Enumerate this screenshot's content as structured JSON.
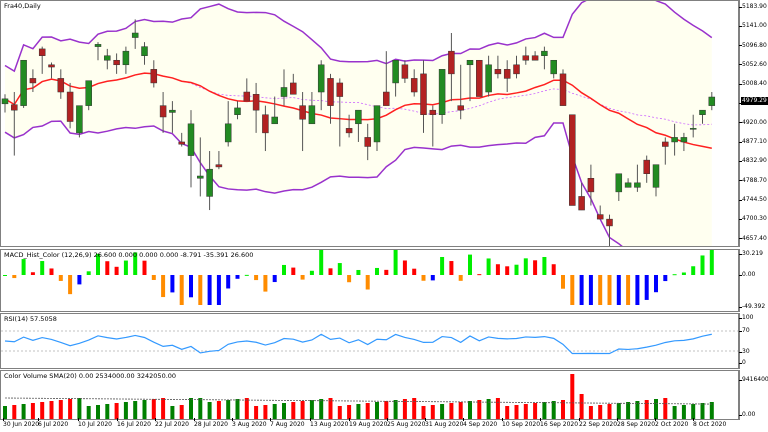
{
  "window": {
    "symbol_label": "Fra40,Daily"
  },
  "main_panel": {
    "price_axis": [
      "5183.90",
      "5141.00",
      "5096.80",
      "5052.60",
      "5008.40",
      "4964.20",
      "4920.00",
      "4877.10",
      "4832.90",
      "4788.70",
      "4744.50",
      "4700.30",
      "4657.40"
    ],
    "current_price": "4979.29",
    "colors": {
      "bull": "#228B22",
      "bear": "#B22222",
      "band": "#9932CC",
      "ma": "#FF2020",
      "fill": "#FFFFF0"
    }
  },
  "macd_panel": {
    "label": "MACD_Hist_Color (12,26,9)  26.600 0.000 0.000 0.000 -8.791 -35.391 26.600",
    "axis": [
      "30.219",
      "0.00",
      "-49.392"
    ]
  },
  "rsi_panel": {
    "label": "RSI(14) 57.5058",
    "axis": [
      "100",
      "70",
      "30",
      "0"
    ]
  },
  "volume_panel": {
    "label": "Color Volume SMA(20) 0.00 2534000.00 3242050.00",
    "axis": [
      "9416400",
      "0.00"
    ]
  },
  "x_axis": [
    "30 Jun 2020",
    "6 Jul 2020",
    "10 Jul 2020",
    "16 Jul 2020",
    "22 Jul 2020",
    "28 Jul 2020",
    "3 Aug 2020",
    "7 Aug 2020",
    "13 Aug 2020",
    "19 Aug 2020",
    "25 Aug 2020",
    "31 Aug 2020",
    "4 Sep 2020",
    "10 Sep 2020",
    "16 Sep 2020",
    "22 Sep 2020",
    "28 Sep 2020",
    "2 Oct 2020",
    "8 Oct 2020"
  ],
  "chart_data": [
    {
      "type": "candlestick",
      "title": "Fra40,Daily",
      "xlabel": "",
      "ylabel": "",
      "ylim": [
        4657.4,
        5183.9
      ],
      "overlays": [
        "Bollinger Bands (upper/lower)",
        "Moving average (red)",
        "Dotted MA (violet)"
      ],
      "candles_ohlc": [
        [
          4964,
          4985,
          4945,
          4975
        ],
        [
          4962,
          4990,
          4850,
          4950
        ],
        [
          4960,
          5010,
          4955,
          5060
        ],
        [
          5020,
          5040,
          4990,
          5010
        ],
        [
          5085,
          5090,
          5030,
          5070
        ],
        [
          5050,
          5055,
          5020,
          5045
        ],
        [
          5020,
          5040,
          4975,
          4990
        ],
        [
          4990,
          5010,
          4910,
          4925
        ],
        [
          4900,
          4930,
          4890,
          4960
        ],
        [
          4960,
          5010,
          4950,
          5015
        ],
        [
          5090,
          5100,
          5060,
          5095
        ],
        [
          5060,
          5085,
          5040,
          5070
        ],
        [
          5060,
          5075,
          5030,
          5050
        ],
        [
          5050,
          5090,
          5030,
          5080
        ],
        [
          5110,
          5150,
          5085,
          5120
        ],
        [
          5070,
          5100,
          5050,
          5090
        ],
        [
          5040,
          5060,
          5000,
          5010
        ],
        [
          4960,
          4990,
          4900,
          4935
        ],
        [
          4945,
          4970,
          4900,
          4950
        ],
        [
          4880,
          4900,
          4870,
          4875
        ],
        [
          4850,
          4950,
          4780,
          4920
        ],
        [
          4800,
          4890,
          4760,
          4805
        ],
        [
          4760,
          4860,
          4730,
          4820
        ],
        [
          4830,
          4860,
          4820,
          4825
        ],
        [
          4880,
          4970,
          4870,
          4920
        ],
        [
          4940,
          4970,
          4930,
          4955
        ],
        [
          4990,
          5020,
          4980,
          4970
        ],
        [
          4985,
          5010,
          4900,
          4950
        ],
        [
          4940,
          4960,
          4860,
          4900
        ],
        [
          4920,
          4980,
          4920,
          4935
        ],
        [
          4980,
          5040,
          4960,
          5000
        ],
        [
          5010,
          5030,
          4990,
          4985
        ],
        [
          4960,
          4990,
          4860,
          4930
        ],
        [
          4920,
          4990,
          4920,
          4960
        ],
        [
          4990,
          5060,
          4950,
          5050
        ],
        [
          5020,
          5030,
          4920,
          4960
        ],
        [
          5010,
          5020,
          4870,
          4980
        ],
        [
          4910,
          4940,
          4890,
          4900
        ],
        [
          4920,
          4940,
          4880,
          4950
        ],
        [
          4890,
          4920,
          4840,
          4870
        ],
        [
          4880,
          4960,
          4860,
          4960
        ],
        [
          4990,
          5080,
          4980,
          4960
        ],
        [
          5010,
          5030,
          4980,
          5060
        ],
        [
          5050,
          5060,
          5010,
          5020
        ],
        [
          5020,
          5040,
          4980,
          4990
        ],
        [
          5030,
          5060,
          4900,
          4940
        ],
        [
          4950,
          4960,
          4870,
          4940
        ],
        [
          4940,
          5030,
          4920,
          5040
        ],
        [
          5080,
          5120,
          4970,
          5030
        ],
        [
          4960,
          5050,
          4930,
          4950
        ],
        [
          5050,
          5060,
          4970,
          5060
        ],
        [
          5060,
          5060,
          4980,
          4980
        ],
        [
          4990,
          5070,
          4980,
          5050
        ],
        [
          5040,
          5070,
          5020,
          5030
        ],
        [
          5040,
          5060,
          4990,
          5020
        ],
        [
          5050,
          5070,
          5020,
          5030
        ],
        [
          5070,
          5090,
          5050,
          5060
        ],
        [
          5070,
          5080,
          5060,
          5060
        ],
        [
          5070,
          5090,
          5040,
          5080
        ],
        [
          5030,
          5060,
          5020,
          5060
        ],
        [
          5030,
          5040,
          4960,
          4960
        ],
        [
          4940,
          4940,
          4750,
          4740
        ],
        [
          4760,
          4790,
          4730,
          4730
        ],
        [
          4800,
          4830,
          4740,
          4770
        ],
        [
          4720,
          4740,
          4720,
          4710
        ],
        [
          4710,
          4720,
          4650,
          4695
        ],
        [
          4770,
          4810,
          4750,
          4810
        ],
        [
          4780,
          4800,
          4780,
          4790
        ],
        [
          4780,
          4830,
          4770,
          4790
        ],
        [
          4840,
          4850,
          4790,
          4810
        ],
        [
          4780,
          4800,
          4760,
          4830
        ],
        [
          4880,
          4890,
          4830,
          4870
        ],
        [
          4880,
          4920,
          4850,
          4890
        ],
        [
          4880,
          4900,
          4860,
          4890
        ],
        [
          4910,
          4940,
          4890,
          4910
        ],
        [
          4940,
          4950,
          4920,
          4950
        ],
        [
          4960,
          4990,
          4950,
          4979
        ]
      ]
    },
    {
      "type": "bar",
      "title": "MACD_Hist_Color (12,26,9)",
      "ylim": [
        -49.392,
        30.219
      ],
      "colors": {
        "green": "#00EE00",
        "red": "#FF0000",
        "orange": "#FF8C00",
        "blue": "#0000FF"
      }
    },
    {
      "type": "line",
      "title": "RSI(14)",
      "ylim": [
        0,
        100
      ],
      "levels": [
        70,
        30
      ],
      "last_value": 57.5058
    },
    {
      "type": "bar",
      "title": "Color Volume SMA(20)",
      "ylim": [
        0,
        9416400
      ],
      "last_values": [
        0.0,
        2534000.0,
        3242050.0
      ]
    }
  ]
}
